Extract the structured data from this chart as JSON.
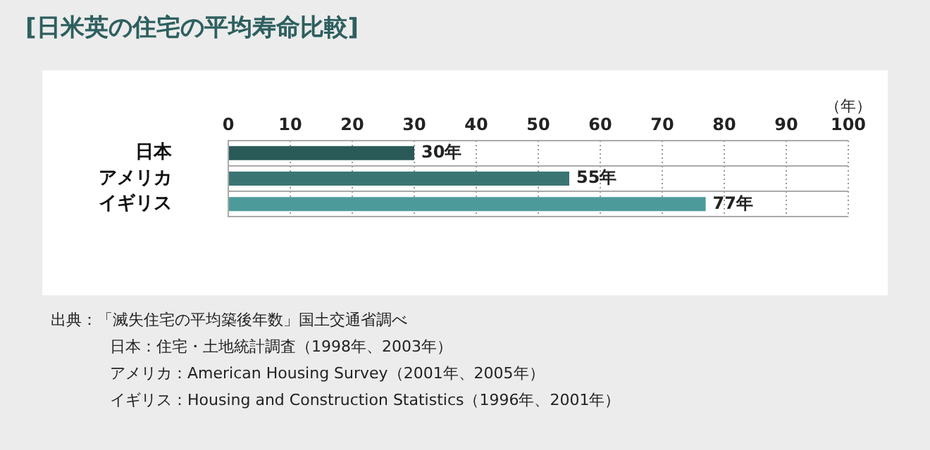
{
  "chart_data": {
    "type": "bar",
    "orientation": "horizontal",
    "title": "[日米英の住宅の平均寿命比較]",
    "xlabel": "（年）",
    "categories": [
      "日本",
      "アメリカ",
      "イギリス"
    ],
    "values": [
      30,
      55,
      77
    ],
    "colors": [
      "#2a5a58",
      "#3a7574",
      "#4d9a9a"
    ],
    "value_labels": [
      "30年",
      "55年",
      "77年"
    ],
    "xlim": [
      0,
      100
    ],
    "xticks": [
      0,
      10,
      20,
      30,
      40,
      50,
      60,
      70,
      80,
      90,
      100
    ],
    "grid": true,
    "legend": false,
    "annotations": [
      "出典：「滅失住宅の平均築後年数」国土交通省調べ",
      "日本：住宅・土地統計調査（1998年、2003年）",
      "アメリカ：American Housing Survey（2001年、2005年）",
      "イギリス：Housing and Construction Statistics（1996年、2001年）"
    ]
  }
}
